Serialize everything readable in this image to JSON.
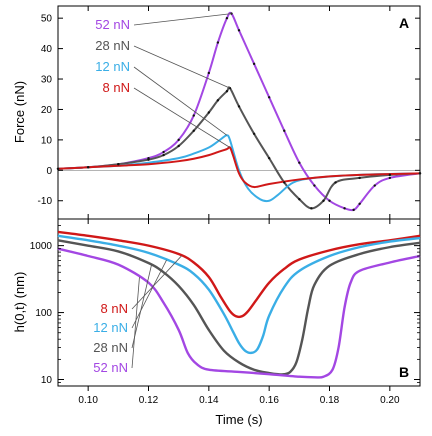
{
  "chart_data": [
    {
      "panel": "A",
      "type": "line",
      "ylabel": "Force (nN)",
      "xlim": [
        0.09,
        0.21
      ],
      "ylim": [
        -16,
        54
      ],
      "yticks": [
        -10,
        0,
        10,
        20,
        30,
        40,
        50
      ],
      "legend_placement": "upper-left, leader lines to peaks",
      "series": [
        {
          "name": "52 nN",
          "color": "#a347e3",
          "markers": true,
          "x": [
            0.09,
            0.1,
            0.11,
            0.12,
            0.125,
            0.13,
            0.135,
            0.14,
            0.143,
            0.146,
            0.1475,
            0.15,
            0.155,
            0.16,
            0.165,
            0.17,
            0.175,
            0.18,
            0.185,
            0.188,
            0.19,
            0.195,
            0.2,
            0.21
          ],
          "y": [
            0.5,
            1.0,
            2.0,
            4.0,
            6.0,
            10.0,
            18.0,
            32.0,
            42.0,
            50.0,
            51.5,
            46.0,
            35.0,
            24.0,
            13.0,
            2.5,
            -5.0,
            -10.0,
            -12.5,
            -13.0,
            -11.0,
            -5.0,
            -2.5,
            -1.0
          ]
        },
        {
          "name": "28 nN",
          "color": "#555555",
          "markers": true,
          "x": [
            0.09,
            0.1,
            0.11,
            0.12,
            0.125,
            0.13,
            0.135,
            0.14,
            0.143,
            0.146,
            0.147,
            0.15,
            0.155,
            0.16,
            0.165,
            0.17,
            0.174,
            0.178,
            0.182,
            0.19,
            0.2,
            0.21
          ],
          "y": [
            0.5,
            1.0,
            2.0,
            3.5,
            5.0,
            8.0,
            13.0,
            19.0,
            23.0,
            26.0,
            27.0,
            21.0,
            12.0,
            4.0,
            -4.0,
            -9.5,
            -12.5,
            -10.0,
            -4.0,
            -2.5,
            -1.5,
            -1.0
          ]
        },
        {
          "name": "12 nN",
          "color": "#3aaee6",
          "markers": false,
          "x": [
            0.09,
            0.1,
            0.11,
            0.12,
            0.13,
            0.135,
            0.14,
            0.143,
            0.145,
            0.146,
            0.147,
            0.15,
            0.153,
            0.157,
            0.16,
            0.163,
            0.168,
            0.175,
            0.19,
            0.21
          ],
          "y": [
            0.5,
            1.0,
            1.5,
            2.5,
            4.0,
            5.5,
            7.5,
            9.5,
            11.0,
            11.5,
            10.0,
            0.0,
            -6.0,
            -9.5,
            -10.0,
            -8.0,
            -4.0,
            -2.5,
            -1.5,
            -1.0
          ]
        },
        {
          "name": "8 nN",
          "color": "#d01818",
          "markers": false,
          "x": [
            0.09,
            0.1,
            0.11,
            0.12,
            0.13,
            0.135,
            0.14,
            0.143,
            0.146,
            0.147,
            0.148,
            0.15,
            0.152,
            0.155,
            0.16,
            0.17,
            0.18,
            0.19,
            0.21
          ],
          "y": [
            0.5,
            1.0,
            1.5,
            2.0,
            3.0,
            3.8,
            5.0,
            6.0,
            7.0,
            7.5,
            5.0,
            -1.0,
            -4.0,
            -5.5,
            -4.5,
            -3.0,
            -2.0,
            -1.5,
            -1.0
          ]
        }
      ]
    },
    {
      "panel": "B",
      "type": "line",
      "xlabel": "Time (s)",
      "ylabel": "h(0,t) (nm)",
      "yscale": "log",
      "xlim": [
        0.09,
        0.21
      ],
      "ylim": [
        8,
        2500
      ],
      "xticks": [
        0.1,
        0.12,
        0.14,
        0.16,
        0.18,
        0.2
      ],
      "xtick_labels": [
        "0.10",
        "0.12",
        "0.14",
        "0.16",
        "0.18",
        "0.20"
      ],
      "yticks": [
        10,
        100,
        1000
      ],
      "legend_placement": "lower-left, leader lines to curves",
      "series": [
        {
          "name": "8 nN",
          "color": "#d01818",
          "x": [
            0.09,
            0.1,
            0.11,
            0.12,
            0.13,
            0.135,
            0.14,
            0.144,
            0.147,
            0.149,
            0.151,
            0.153,
            0.156,
            0.16,
            0.165,
            0.17,
            0.18,
            0.19,
            0.2,
            0.21
          ],
          "y": [
            1600,
            1400,
            1200,
            1000,
            750,
            560,
            340,
            170,
            105,
            88,
            88,
            105,
            160,
            280,
            450,
            620,
            850,
            1050,
            1200,
            1400
          ]
        },
        {
          "name": "12 nN",
          "color": "#3aaee6",
          "x": [
            0.09,
            0.1,
            0.11,
            0.12,
            0.13,
            0.135,
            0.14,
            0.145,
            0.148,
            0.15,
            0.152,
            0.154,
            0.156,
            0.158,
            0.16,
            0.165,
            0.17,
            0.18,
            0.19,
            0.2,
            0.21
          ],
          "y": [
            1400,
            1200,
            1000,
            780,
            520,
            380,
            220,
            95,
            52,
            35,
            27,
            25,
            28,
            45,
            90,
            240,
            420,
            700,
            950,
            1150,
            1300
          ]
        },
        {
          "name": "28 nN",
          "color": "#555555",
          "x": [
            0.09,
            0.1,
            0.11,
            0.12,
            0.125,
            0.13,
            0.135,
            0.14,
            0.145,
            0.15,
            0.155,
            0.16,
            0.163,
            0.165,
            0.167,
            0.169,
            0.171,
            0.173,
            0.175,
            0.18,
            0.19,
            0.2,
            0.21
          ],
          "y": [
            1200,
            1000,
            820,
            550,
            400,
            250,
            130,
            55,
            27,
            18,
            14,
            12.5,
            12,
            12,
            13,
            18,
            40,
            120,
            260,
            500,
            750,
            950,
            1100
          ]
        },
        {
          "name": "52 nN",
          "color": "#a347e3",
          "x": [
            0.09,
            0.1,
            0.11,
            0.12,
            0.125,
            0.13,
            0.133,
            0.136,
            0.14,
            0.15,
            0.16,
            0.17,
            0.175,
            0.178,
            0.181,
            0.183,
            0.185,
            0.187,
            0.19,
            0.2,
            0.21
          ],
          "y": [
            900,
            700,
            520,
            280,
            140,
            55,
            25,
            17,
            14,
            13,
            12,
            11,
            10.8,
            11,
            14,
            30,
            120,
            280,
            420,
            560,
            700
          ]
        }
      ]
    }
  ]
}
